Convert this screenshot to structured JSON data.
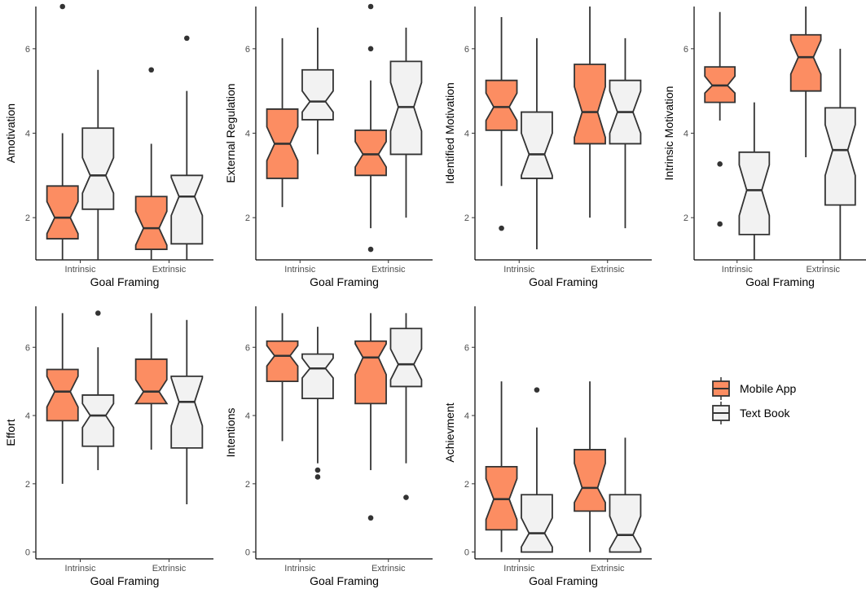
{
  "chart_data": {
    "type": "boxplot",
    "grid": false,
    "legend": {
      "placement": "right",
      "entries": [
        {
          "name": "Mobile App",
          "color": "#FC8D62"
        },
        {
          "name": "Text Book",
          "color": "#F2F2F2"
        }
      ]
    },
    "colors": {
      "Mobile App": "#FC8D62",
      "Text Book": "#F2F2F2",
      "line": "#333333"
    },
    "panels": [
      {
        "ylabel": "Amotivation",
        "xlabel": "Goal Framing",
        "categories": [
          "Intrinsic",
          "Extrinsic"
        ],
        "ylim": [
          1,
          7
        ],
        "yticks": [
          2,
          4,
          6
        ],
        "boxes": [
          {
            "category": "Intrinsic",
            "series": "Mobile App",
            "min": 1.0,
            "q1": 1.5,
            "median": 2.0,
            "q3": 2.75,
            "max": 4.0,
            "notch": [
              1.62,
              2.38
            ],
            "outliers": [
              7.0
            ]
          },
          {
            "category": "Intrinsic",
            "series": "Text Book",
            "min": 1.0,
            "q1": 2.2,
            "median": 3.0,
            "q3": 4.12,
            "max": 5.5,
            "notch": [
              2.58,
              3.42
            ],
            "outliers": []
          },
          {
            "category": "Extrinsic",
            "series": "Mobile App",
            "min": 1.0,
            "q1": 1.25,
            "median": 1.75,
            "q3": 2.5,
            "max": 3.75,
            "notch": [
              1.35,
              2.15
            ],
            "outliers": [
              5.5
            ]
          },
          {
            "category": "Extrinsic",
            "series": "Text Book",
            "min": 1.0,
            "q1": 1.38,
            "median": 2.5,
            "q3": 3.0,
            "max": 5.0,
            "notch": [
              2.05,
              2.95
            ],
            "outliers": [
              6.25
            ]
          }
        ]
      },
      {
        "ylabel": "External Regulation",
        "xlabel": "Goal Framing",
        "categories": [
          "Intrinsic",
          "Extrinsic"
        ],
        "ylim": [
          1,
          7
        ],
        "yticks": [
          2,
          4,
          6
        ],
        "boxes": [
          {
            "category": "Intrinsic",
            "series": "Mobile App",
            "min": 2.25,
            "q1": 2.93,
            "median": 3.75,
            "q3": 4.57,
            "max": 6.25,
            "notch": [
              3.35,
              4.15
            ],
            "outliers": []
          },
          {
            "category": "Intrinsic",
            "series": "Text Book",
            "min": 3.5,
            "q1": 4.32,
            "median": 4.75,
            "q3": 5.5,
            "max": 6.5,
            "notch": [
              4.5,
              5.0
            ],
            "outliers": []
          },
          {
            "category": "Extrinsic",
            "series": "Mobile App",
            "min": 1.75,
            "q1": 3.0,
            "median": 3.5,
            "q3": 4.07,
            "max": 5.25,
            "notch": [
              3.2,
              3.8
            ],
            "outliers": [
              1.25,
              6.0,
              7.0
            ]
          },
          {
            "category": "Extrinsic",
            "series": "Text Book",
            "min": 2.0,
            "q1": 3.5,
            "median": 4.62,
            "q3": 5.7,
            "max": 6.5,
            "notch": [
              4.05,
              5.2
            ],
            "outliers": []
          }
        ]
      },
      {
        "ylabel": "Identified Motivation",
        "xlabel": "Goal Framing",
        "categories": [
          "Intrinsic",
          "Extrinsic"
        ],
        "ylim": [
          1,
          7
        ],
        "yticks": [
          2,
          4,
          6
        ],
        "boxes": [
          {
            "category": "Intrinsic",
            "series": "Mobile App",
            "min": 2.75,
            "q1": 4.07,
            "median": 4.62,
            "q3": 5.25,
            "max": 6.75,
            "notch": [
              4.3,
              4.95
            ],
            "outliers": [
              1.75
            ]
          },
          {
            "category": "Intrinsic",
            "series": "Text Book",
            "min": 1.25,
            "q1": 2.93,
            "median": 3.5,
            "q3": 4.5,
            "max": 6.25,
            "notch": [
              3.0,
              4.0
            ],
            "outliers": []
          },
          {
            "category": "Extrinsic",
            "series": "Mobile App",
            "min": 2.0,
            "q1": 3.75,
            "median": 4.5,
            "q3": 5.63,
            "max": 7.0,
            "notch": [
              3.9,
              5.1
            ],
            "outliers": []
          },
          {
            "category": "Extrinsic",
            "series": "Text Book",
            "min": 1.75,
            "q1": 3.75,
            "median": 4.5,
            "q3": 5.25,
            "max": 6.25,
            "notch": [
              4.0,
              5.0
            ],
            "outliers": []
          }
        ]
      },
      {
        "ylabel": "Intrinsic Motivation",
        "xlabel": "Goal Framing",
        "categories": [
          "Intrinsic",
          "Extrinsic"
        ],
        "ylim": [
          1,
          7
        ],
        "yticks": [
          2,
          4,
          6
        ],
        "boxes": [
          {
            "category": "Intrinsic",
            "series": "Mobile App",
            "min": 4.3,
            "q1": 4.73,
            "median": 5.13,
            "q3": 5.57,
            "max": 6.87,
            "notch": [
              4.95,
              5.35
            ],
            "outliers": [
              1.85,
              3.27
            ]
          },
          {
            "category": "Intrinsic",
            "series": "Text Book",
            "min": 1.0,
            "q1": 1.6,
            "median": 2.65,
            "q3": 3.55,
            "max": 4.73,
            "notch": [
              2.05,
              3.25
            ],
            "outliers": []
          },
          {
            "category": "Extrinsic",
            "series": "Mobile App",
            "min": 3.43,
            "q1": 5.0,
            "median": 5.8,
            "q3": 6.33,
            "max": 7.0,
            "notch": [
              5.4,
              6.2
            ],
            "outliers": []
          },
          {
            "category": "Extrinsic",
            "series": "Text Book",
            "min": 1.0,
            "q1": 2.3,
            "median": 3.6,
            "q3": 4.6,
            "max": 6.0,
            "notch": [
              3.0,
              4.2
            ],
            "outliers": []
          }
        ]
      },
      {
        "ylabel": "Effort",
        "xlabel": "Goal Framing",
        "categories": [
          "Intrinsic",
          "Extrinsic"
        ],
        "ylim": [
          -0.2,
          7.2
        ],
        "yticks": [
          0,
          2,
          4,
          6
        ],
        "boxes": [
          {
            "category": "Intrinsic",
            "series": "Mobile App",
            "min": 2.0,
            "q1": 3.85,
            "median": 4.7,
            "q3": 5.35,
            "max": 7.0,
            "notch": [
              4.25,
              5.15
            ],
            "outliers": []
          },
          {
            "category": "Intrinsic",
            "series": "Text Book",
            "min": 2.4,
            "q1": 3.1,
            "median": 4.0,
            "q3": 4.6,
            "max": 6.0,
            "notch": [
              3.65,
              4.35
            ],
            "outliers": [
              7.0
            ]
          },
          {
            "category": "Extrinsic",
            "series": "Mobile App",
            "min": 3.0,
            "q1": 4.35,
            "median": 4.7,
            "q3": 5.65,
            "max": 7.0,
            "notch": [
              4.35,
              5.05
            ],
            "outliers": []
          },
          {
            "category": "Extrinsic",
            "series": "Text Book",
            "min": 1.4,
            "q1": 3.05,
            "median": 4.4,
            "q3": 5.15,
            "max": 6.8,
            "notch": [
              3.7,
              5.1
            ],
            "outliers": []
          }
        ]
      },
      {
        "ylabel": "Intentions",
        "xlabel": "Goal Framing",
        "categories": [
          "Intrinsic",
          "Extrinsic"
        ],
        "ylim": [
          -0.2,
          7.2
        ],
        "yticks": [
          0,
          2,
          4,
          6
        ],
        "boxes": [
          {
            "category": "Intrinsic",
            "series": "Mobile App",
            "min": 3.25,
            "q1": 5.0,
            "median": 5.75,
            "q3": 6.18,
            "max": 7.0,
            "notch": [
              5.45,
              6.05
            ],
            "outliers": []
          },
          {
            "category": "Intrinsic",
            "series": "Text Book",
            "min": 2.6,
            "q1": 4.5,
            "median": 5.38,
            "q3": 5.8,
            "max": 6.6,
            "notch": [
              5.1,
              5.68
            ],
            "outliers": [
              2.2,
              2.4
            ]
          },
          {
            "category": "Extrinsic",
            "series": "Mobile App",
            "min": 2.4,
            "q1": 4.35,
            "median": 5.7,
            "q3": 6.18,
            "max": 7.0,
            "notch": [
              5.2,
              6.1
            ],
            "outliers": [
              1.0
            ]
          },
          {
            "category": "Extrinsic",
            "series": "Text Book",
            "min": 2.6,
            "q1": 4.85,
            "median": 5.5,
            "q3": 6.55,
            "max": 7.0,
            "notch": [
              5.05,
              5.95
            ],
            "outliers": [
              1.6
            ]
          }
        ]
      },
      {
        "ylabel": "Achievment",
        "xlabel": "Goal Framing",
        "categories": [
          "Intrinsic",
          "Extrinsic"
        ],
        "ylim": [
          -0.2,
          7.2
        ],
        "yticks": [
          0,
          2,
          4,
          6
        ],
        "boxes": [
          {
            "category": "Intrinsic",
            "series": "Mobile App",
            "min": 0.0,
            "q1": 0.65,
            "median": 1.55,
            "q3": 2.5,
            "max": 5.0,
            "notch": [
              0.95,
              2.15
            ],
            "outliers": []
          },
          {
            "category": "Intrinsic",
            "series": "Text Book",
            "min": 0.0,
            "q1": 0.0,
            "median": 0.55,
            "q3": 1.68,
            "max": 3.65,
            "notch": [
              0.15,
              1.0
            ],
            "outliers": [
              4.75
            ]
          },
          {
            "category": "Extrinsic",
            "series": "Mobile App",
            "min": 0.0,
            "q1": 1.2,
            "median": 1.88,
            "q3": 3.0,
            "max": 5.0,
            "notch": [
              1.45,
              2.6
            ],
            "outliers": []
          },
          {
            "category": "Extrinsic",
            "series": "Text Book",
            "min": 0.0,
            "q1": 0.0,
            "median": 0.5,
            "q3": 1.68,
            "max": 3.35,
            "notch": [
              0.1,
              1.05
            ],
            "outliers": []
          }
        ]
      }
    ]
  }
}
